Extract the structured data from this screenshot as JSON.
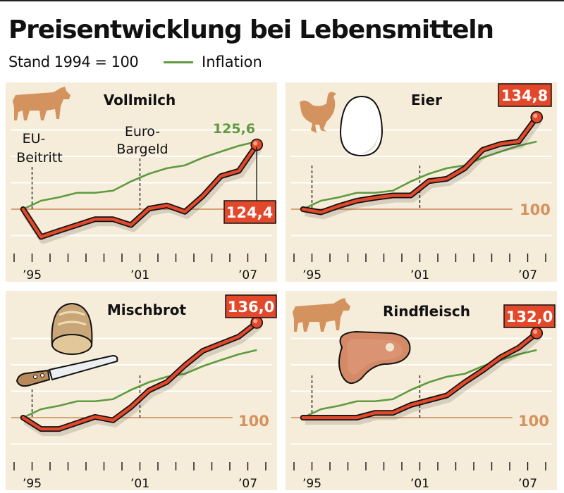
{
  "header": {
    "title": "Preisentwicklung bei Lebensmitteln",
    "subtitle": "Stand 1994 = 100",
    "legend_inflation": "Inflation"
  },
  "colors": {
    "product_line": "#e3482b",
    "inflation_line": "#5e9a3e",
    "baseline": "#d08a55",
    "panel_bg": "#f5ecd9",
    "icon": "#d4925e"
  },
  "baseline_label": "100",
  "year_labels": [
    "’95",
    "’01",
    "’07"
  ],
  "annotations": {
    "eu_line1": "EU-",
    "eu_line2": "Beitritt",
    "euro_line1": "Euro-",
    "euro_line2": "Bargeld"
  },
  "chart_data": [
    {
      "type": "line",
      "title": "Vollmilch",
      "icons": [
        "cow-icon"
      ],
      "x": [
        1994,
        1995,
        1996,
        1997,
        1998,
        1999,
        2000,
        2001,
        2002,
        2003,
        2004,
        2005,
        2006,
        2007
      ],
      "series": [
        {
          "values": [
            100,
            89.5,
            91.8,
            94,
            96.2,
            96.2,
            94,
            100.2,
            101.4,
            99,
            105,
            112.5,
            114.5,
            124.4
          ]
        },
        {
          "name": "Inflation",
          "values": [
            100,
            103.2,
            104.5,
            106.2,
            106.2,
            107,
            110.5,
            113.4,
            115.5,
            116.6,
            119.5,
            121.8,
            124,
            125.6
          ]
        }
      ],
      "end_label": "124,4",
      "inflation_end_label": "125,6",
      "baseline": 100,
      "markers": [
        1995,
        2001
      ],
      "grid": true
    },
    {
      "type": "line",
      "title": "Eier",
      "icons": [
        "chicken-icon",
        "egg-icon"
      ],
      "x": [
        1994,
        1995,
        1996,
        1997,
        1998,
        1999,
        2000,
        2001,
        2002,
        2003,
        2004,
        2005,
        2006,
        2007
      ],
      "series": [
        {
          "values": [
            100,
            98.8,
            101.2,
            103.2,
            104.3,
            105.2,
            105.2,
            110.6,
            111.5,
            115.5,
            122.5,
            124.7,
            125.6,
            134.8
          ]
        },
        {
          "name": "Inflation",
          "values": [
            100,
            103.2,
            104.5,
            106.2,
            106.2,
            107,
            110.5,
            113.4,
            115.5,
            116.6,
            119.5,
            121.8,
            124,
            125.6
          ]
        }
      ],
      "end_label": "134,8",
      "baseline": 100,
      "markers": [
        1995,
        2001
      ],
      "grid": true
    },
    {
      "type": "line",
      "title": "Mischbrot",
      "icons": [
        "bread-icon",
        "knife-icon"
      ],
      "x": [
        1994,
        1995,
        1996,
        1997,
        1998,
        1999,
        2000,
        2001,
        2002,
        2003,
        2004,
        2005,
        2006,
        2007
      ],
      "series": [
        {
          "values": [
            100,
            95.7,
            95.7,
            98,
            100.3,
            99,
            104,
            110.3,
            113.5,
            119.8,
            125.3,
            128,
            130.7,
            136.0
          ]
        },
        {
          "name": "Inflation",
          "values": [
            100,
            103.2,
            104.5,
            106.2,
            106.2,
            107,
            110.5,
            113.4,
            115.5,
            116.6,
            119.5,
            121.8,
            124,
            125.6
          ]
        }
      ],
      "end_label": "136,0",
      "baseline": 100,
      "markers": [
        1995,
        2001
      ],
      "grid": true
    },
    {
      "type": "line",
      "title": "Rindfleisch",
      "icons": [
        "cow-icon",
        "steak-icon"
      ],
      "x": [
        1994,
        1995,
        1996,
        1997,
        1998,
        1999,
        2000,
        2001,
        2002,
        2003,
        2004,
        2005,
        2006,
        2007
      ],
      "series": [
        {
          "values": [
            100,
            100,
            100,
            100,
            101.8,
            101.8,
            104.8,
            106.6,
            108.4,
            113.4,
            117.9,
            122.9,
            126.5,
            132.0
          ]
        },
        {
          "name": "Inflation",
          "values": [
            100,
            103.2,
            104.5,
            106.2,
            106.2,
            107,
            110.5,
            113.4,
            115.5,
            116.6,
            119.5,
            121.8,
            124,
            125.6
          ]
        }
      ],
      "end_label": "132,0",
      "baseline": 100,
      "markers": [
        1995,
        2001
      ],
      "grid": true
    }
  ]
}
